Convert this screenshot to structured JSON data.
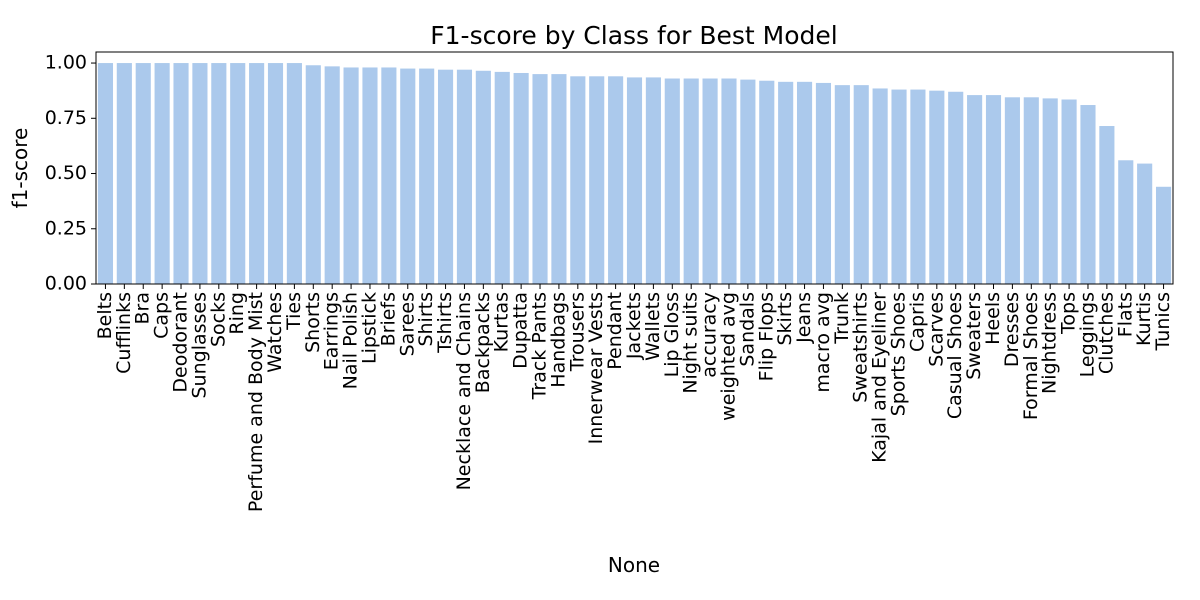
{
  "chart_data": {
    "type": "bar",
    "title": "F1-score by Class for Best Model",
    "xlabel": "None",
    "ylabel": "f1-score",
    "ylim": [
      0,
      1.05
    ],
    "yticks": [
      "0.00",
      "0.25",
      "0.50",
      "0.75",
      "1.00"
    ],
    "bar_color": "#abc9ec",
    "grid": false,
    "categories": [
      "Belts",
      "Cufflinks",
      "Bra",
      "Caps",
      "Deodorant",
      "Sunglasses",
      "Socks",
      "Ring",
      "Perfume and Body Mist",
      "Watches",
      "Ties",
      "Shorts",
      "Earrings",
      "Nail Polish",
      "Lipstick",
      "Briefs",
      "Sarees",
      "Shirts",
      "Tshirts",
      "Necklace and Chains",
      "Backpacks",
      "Kurtas",
      "Dupatta",
      "Track Pants",
      "Handbags",
      "Trousers",
      "Innerwear Vests",
      "Pendant",
      "Jackets",
      "Wallets",
      "Lip Gloss",
      "Night suits",
      "accuracy",
      "weighted avg",
      "Sandals",
      "Flip Flops",
      "Skirts",
      "Jeans",
      "macro avg",
      "Trunk",
      "Sweatshirts",
      "Kajal and Eyeliner",
      "Sports Shoes",
      "Capris",
      "Scarves",
      "Casual Shoes",
      "Sweaters",
      "Heels",
      "Dresses",
      "Formal Shoes",
      "Nightdress",
      "Tops",
      "Leggings",
      "Clutches",
      "Flats",
      "Kurtis",
      "Tunics"
    ],
    "values": [
      1.0,
      1.0,
      1.0,
      1.0,
      1.0,
      1.0,
      1.0,
      1.0,
      1.0,
      1.0,
      1.0,
      0.99,
      0.985,
      0.98,
      0.98,
      0.98,
      0.975,
      0.975,
      0.97,
      0.97,
      0.965,
      0.96,
      0.955,
      0.95,
      0.95,
      0.94,
      0.94,
      0.94,
      0.935,
      0.935,
      0.93,
      0.93,
      0.93,
      0.93,
      0.925,
      0.92,
      0.915,
      0.915,
      0.91,
      0.9,
      0.9,
      0.885,
      0.88,
      0.88,
      0.875,
      0.87,
      0.855,
      0.855,
      0.845,
      0.845,
      0.84,
      0.835,
      0.81,
      0.715,
      0.56,
      0.545,
      0.44
    ]
  }
}
